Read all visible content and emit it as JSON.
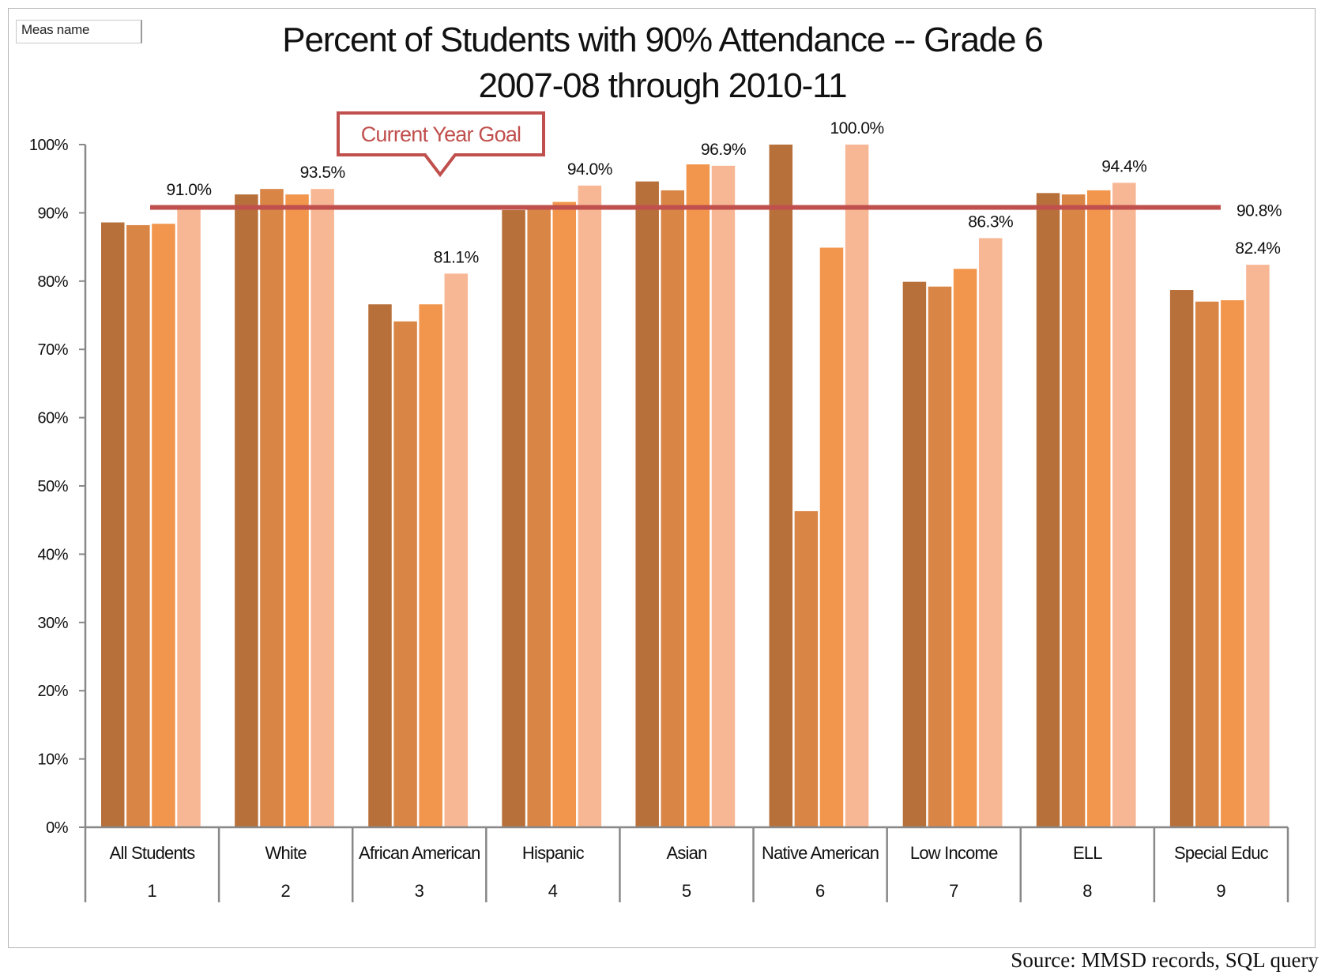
{
  "measure_box": {
    "label": "Meas name"
  },
  "chart_data": {
    "type": "bar",
    "title_lines": [
      "Percent of Students with 90% Attendance -- Grade 6",
      "2007-08 through 2010-11"
    ],
    "categories": [
      "All Students",
      "White",
      "African American",
      "Hispanic",
      "Asian",
      "Native American",
      "Low Income",
      "ELL",
      "Special Educ"
    ],
    "category_numbers": [
      "1",
      "2",
      "3",
      "4",
      "5",
      "6",
      "7",
      "8",
      "9"
    ],
    "series": [
      {
        "values": [
          88.6,
          92.7,
          76.6,
          90.4,
          94.6,
          100.0,
          79.9,
          92.9,
          78.7
        ],
        "color": "#b8703a"
      },
      {
        "values": [
          88.2,
          93.5,
          74.1,
          91.0,
          93.3,
          46.3,
          79.2,
          92.7,
          77.0
        ],
        "color": "#d98546"
      },
      {
        "values": [
          88.4,
          92.7,
          76.6,
          91.6,
          97.1,
          84.9,
          81.8,
          93.3,
          77.2
        ],
        "color": "#f2964d"
      },
      {
        "values": [
          91.0,
          93.5,
          81.1,
          94.0,
          96.9,
          100.0,
          86.3,
          94.4,
          82.4
        ],
        "color": "#f7b795"
      }
    ],
    "data_labels": [
      "91.0%",
      "93.5%",
      "81.1%",
      "94.0%",
      "96.9%",
      "100.0%",
      "86.3%",
      "94.4%",
      "82.4%"
    ],
    "y_ticks": [
      "0%",
      "10%",
      "20%",
      "30%",
      "40%",
      "50%",
      "60%",
      "70%",
      "80%",
      "90%",
      "100%"
    ],
    "ylim": [
      0,
      100
    ],
    "goal": {
      "value": 90.8,
      "label": "90.8%",
      "callout": "Current Year Goal",
      "color": "#c0504d"
    },
    "grid": false,
    "legend": "none"
  },
  "source": "Source:  MMSD records, SQL query"
}
